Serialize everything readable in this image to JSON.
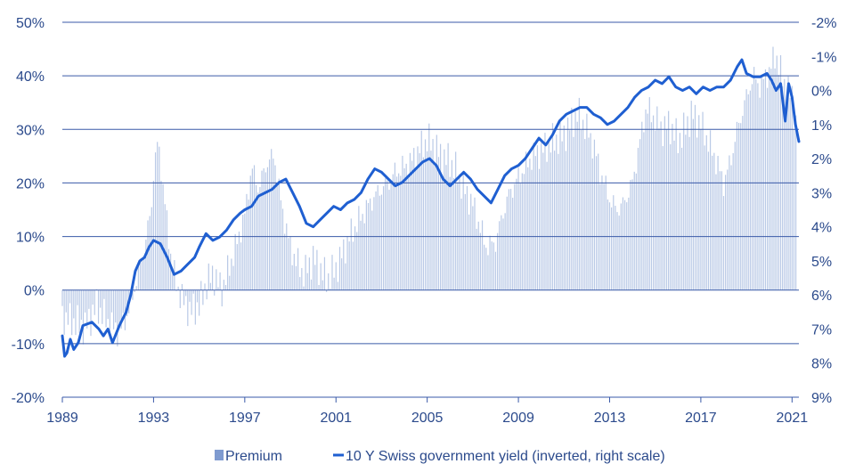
{
  "colors": {
    "bar": "#b9c9e6",
    "line": "#1f5fd1",
    "grid": "#3a5aa8",
    "axis_text": "#2b4a8c",
    "legend_swatch": "#7f9bd0"
  },
  "legend": {
    "premium_label": "Premium",
    "yield_label": "10 Y Swiss government yield (inverted, right scale)"
  },
  "chart_data": {
    "type": "bar+line",
    "legend_position": "bottom",
    "grid": "horizontal",
    "x_ticks": [
      "1989",
      "1993",
      "1997",
      "2001",
      "2005",
      "2009",
      "2013",
      "2017",
      "2021"
    ],
    "x_range": [
      1989,
      2021.3
    ],
    "left_axis": {
      "ticks": [
        "50%",
        "40%",
        "30%",
        "20%",
        "10%",
        "0%",
        "-10%",
        "-20%"
      ],
      "range": [
        -20,
        50
      ]
    },
    "right_axis": {
      "ticks": [
        "-2%",
        "-1%",
        "0%",
        "1%",
        "2%",
        "3%",
        "4%",
        "5%",
        "6%",
        "7%",
        "8%",
        "9%"
      ],
      "range": [
        9,
        -2
      ],
      "inverted": true
    },
    "series": [
      {
        "name": "Premium",
        "type": "bar",
        "axis": "left",
        "points": [
          [
            1989.0,
            -5
          ],
          [
            1989.5,
            -6
          ],
          [
            1990.0,
            -7
          ],
          [
            1990.5,
            -3
          ],
          [
            1991.0,
            -6
          ],
          [
            1991.5,
            -8
          ],
          [
            1992.0,
            -3
          ],
          [
            1992.3,
            3
          ],
          [
            1992.6,
            8
          ],
          [
            1992.9,
            15
          ],
          [
            1993.0,
            22
          ],
          [
            1993.2,
            28
          ],
          [
            1993.4,
            20
          ],
          [
            1993.6,
            12
          ],
          [
            1993.8,
            5
          ],
          [
            1994.0,
            1
          ],
          [
            1994.3,
            -2
          ],
          [
            1994.6,
            -4
          ],
          [
            1995.0,
            -3
          ],
          [
            1995.3,
            1
          ],
          [
            1995.6,
            3
          ],
          [
            1996.0,
            0
          ],
          [
            1996.3,
            4
          ],
          [
            1996.6,
            8
          ],
          [
            1997.0,
            14
          ],
          [
            1997.3,
            23
          ],
          [
            1997.6,
            19
          ],
          [
            1998.0,
            24
          ],
          [
            1998.3,
            25
          ],
          [
            1998.6,
            16
          ],
          [
            1999.0,
            8
          ],
          [
            1999.3,
            5
          ],
          [
            1999.6,
            3
          ],
          [
            2000.0,
            6
          ],
          [
            2000.3,
            4
          ],
          [
            2000.6,
            2
          ],
          [
            2001.0,
            4
          ],
          [
            2001.3,
            7
          ],
          [
            2001.6,
            10
          ],
          [
            2002.0,
            13
          ],
          [
            2002.3,
            15
          ],
          [
            2002.6,
            17
          ],
          [
            2003.0,
            19
          ],
          [
            2003.3,
            20
          ],
          [
            2003.6,
            22
          ],
          [
            2004.0,
            23
          ],
          [
            2004.3,
            24
          ],
          [
            2004.6,
            26
          ],
          [
            2005.0,
            28
          ],
          [
            2005.3,
            27
          ],
          [
            2005.6,
            25
          ],
          [
            2006.0,
            24
          ],
          [
            2006.3,
            22
          ],
          [
            2006.6,
            19
          ],
          [
            2007.0,
            16
          ],
          [
            2007.3,
            12
          ],
          [
            2007.6,
            8
          ],
          [
            2008.0,
            9
          ],
          [
            2008.3,
            14
          ],
          [
            2008.6,
            18
          ],
          [
            2009.0,
            21
          ],
          [
            2009.3,
            23
          ],
          [
            2009.6,
            25
          ],
          [
            2010.0,
            26
          ],
          [
            2010.3,
            27
          ],
          [
            2010.6,
            28
          ],
          [
            2011.0,
            29
          ],
          [
            2011.3,
            31
          ],
          [
            2011.6,
            33
          ],
          [
            2012.0,
            30
          ],
          [
            2012.3,
            27
          ],
          [
            2012.6,
            22
          ],
          [
            2013.0,
            17
          ],
          [
            2013.3,
            15
          ],
          [
            2013.6,
            16
          ],
          [
            2014.0,
            20
          ],
          [
            2014.3,
            27
          ],
          [
            2014.6,
            34
          ],
          [
            2015.0,
            32
          ],
          [
            2015.3,
            30
          ],
          [
            2015.6,
            31
          ],
          [
            2016.0,
            28
          ],
          [
            2016.3,
            30
          ],
          [
            2016.6,
            33
          ],
          [
            2017.0,
            31
          ],
          [
            2017.3,
            28
          ],
          [
            2017.6,
            25
          ],
          [
            2018.0,
            20
          ],
          [
            2018.3,
            24
          ],
          [
            2018.6,
            30
          ],
          [
            2019.0,
            36
          ],
          [
            2019.3,
            40
          ],
          [
            2019.6,
            38
          ],
          [
            2020.0,
            41
          ],
          [
            2020.3,
            44
          ],
          [
            2020.6,
            39
          ],
          [
            2021.0,
            36
          ],
          [
            2021.2,
            30
          ]
        ]
      },
      {
        "name": "10 Y Swiss government yield (inverted, right scale)",
        "type": "line",
        "axis": "right",
        "points": [
          [
            1989.0,
            7.2
          ],
          [
            1989.1,
            7.8
          ],
          [
            1989.2,
            7.7
          ],
          [
            1989.35,
            7.3
          ],
          [
            1989.5,
            7.6
          ],
          [
            1989.7,
            7.4
          ],
          [
            1989.9,
            6.9
          ],
          [
            1990.3,
            6.8
          ],
          [
            1990.6,
            7.0
          ],
          [
            1990.8,
            7.2
          ],
          [
            1991.0,
            7.0
          ],
          [
            1991.2,
            7.4
          ],
          [
            1991.5,
            6.9
          ],
          [
            1991.8,
            6.5
          ],
          [
            1992.0,
            6.0
          ],
          [
            1992.2,
            5.3
          ],
          [
            1992.4,
            5.0
          ],
          [
            1992.6,
            4.9
          ],
          [
            1992.8,
            4.6
          ],
          [
            1993.0,
            4.4
          ],
          [
            1993.3,
            4.5
          ],
          [
            1993.6,
            4.9
          ],
          [
            1993.9,
            5.4
          ],
          [
            1994.2,
            5.3
          ],
          [
            1994.5,
            5.1
          ],
          [
            1994.8,
            4.9
          ],
          [
            1995.0,
            4.6
          ],
          [
            1995.3,
            4.2
          ],
          [
            1995.6,
            4.4
          ],
          [
            1995.9,
            4.3
          ],
          [
            1996.2,
            4.1
          ],
          [
            1996.5,
            3.8
          ],
          [
            1996.8,
            3.6
          ],
          [
            1997.0,
            3.5
          ],
          [
            1997.3,
            3.4
          ],
          [
            1997.6,
            3.1
          ],
          [
            1997.9,
            3.0
          ],
          [
            1998.2,
            2.9
          ],
          [
            1998.5,
            2.7
          ],
          [
            1998.8,
            2.6
          ],
          [
            1999.1,
            3.0
          ],
          [
            1999.4,
            3.4
          ],
          [
            1999.7,
            3.9
          ],
          [
            2000.0,
            4.0
          ],
          [
            2000.3,
            3.8
          ],
          [
            2000.6,
            3.6
          ],
          [
            2000.9,
            3.4
          ],
          [
            2001.2,
            3.5
          ],
          [
            2001.5,
            3.3
          ],
          [
            2001.8,
            3.2
          ],
          [
            2002.1,
            3.0
          ],
          [
            2002.4,
            2.6
          ],
          [
            2002.7,
            2.3
          ],
          [
            2003.0,
            2.4
          ],
          [
            2003.3,
            2.6
          ],
          [
            2003.6,
            2.8
          ],
          [
            2003.9,
            2.7
          ],
          [
            2004.2,
            2.5
          ],
          [
            2004.5,
            2.3
          ],
          [
            2004.8,
            2.1
          ],
          [
            2005.1,
            2.0
          ],
          [
            2005.4,
            2.2
          ],
          [
            2005.7,
            2.6
          ],
          [
            2006.0,
            2.8
          ],
          [
            2006.3,
            2.6
          ],
          [
            2006.6,
            2.4
          ],
          [
            2006.9,
            2.6
          ],
          [
            2007.2,
            2.9
          ],
          [
            2007.5,
            3.1
          ],
          [
            2007.8,
            3.3
          ],
          [
            2008.1,
            2.9
          ],
          [
            2008.4,
            2.5
          ],
          [
            2008.7,
            2.3
          ],
          [
            2009.0,
            2.2
          ],
          [
            2009.3,
            2.0
          ],
          [
            2009.6,
            1.7
          ],
          [
            2009.9,
            1.4
          ],
          [
            2010.2,
            1.6
          ],
          [
            2010.5,
            1.3
          ],
          [
            2010.8,
            0.9
          ],
          [
            2011.1,
            0.7
          ],
          [
            2011.4,
            0.6
          ],
          [
            2011.7,
            0.5
          ],
          [
            2012.0,
            0.5
          ],
          [
            2012.3,
            0.7
          ],
          [
            2012.6,
            0.8
          ],
          [
            2012.9,
            1.0
          ],
          [
            2013.2,
            0.9
          ],
          [
            2013.5,
            0.7
          ],
          [
            2013.8,
            0.5
          ],
          [
            2014.1,
            0.2
          ],
          [
            2014.4,
            0.0
          ],
          [
            2014.7,
            -0.1
          ],
          [
            2015.0,
            -0.3
          ],
          [
            2015.3,
            -0.2
          ],
          [
            2015.6,
            -0.4
          ],
          [
            2015.9,
            -0.1
          ],
          [
            2016.2,
            0.0
          ],
          [
            2016.5,
            -0.1
          ],
          [
            2016.8,
            0.1
          ],
          [
            2017.1,
            -0.1
          ],
          [
            2017.4,
            0.0
          ],
          [
            2017.7,
            -0.1
          ],
          [
            2018.0,
            -0.1
          ],
          [
            2018.3,
            -0.3
          ],
          [
            2018.6,
            -0.7
          ],
          [
            2018.8,
            -0.9
          ],
          [
            2019.0,
            -0.5
          ],
          [
            2019.3,
            -0.4
          ],
          [
            2019.6,
            -0.4
          ],
          [
            2019.9,
            -0.5
          ],
          [
            2020.1,
            -0.3
          ],
          [
            2020.3,
            0.0
          ],
          [
            2020.5,
            -0.2
          ],
          [
            2020.7,
            0.9
          ],
          [
            2020.85,
            -0.2
          ],
          [
            2021.0,
            0.2
          ],
          [
            2021.15,
            1.0
          ],
          [
            2021.3,
            1.5
          ]
        ]
      }
    ]
  }
}
